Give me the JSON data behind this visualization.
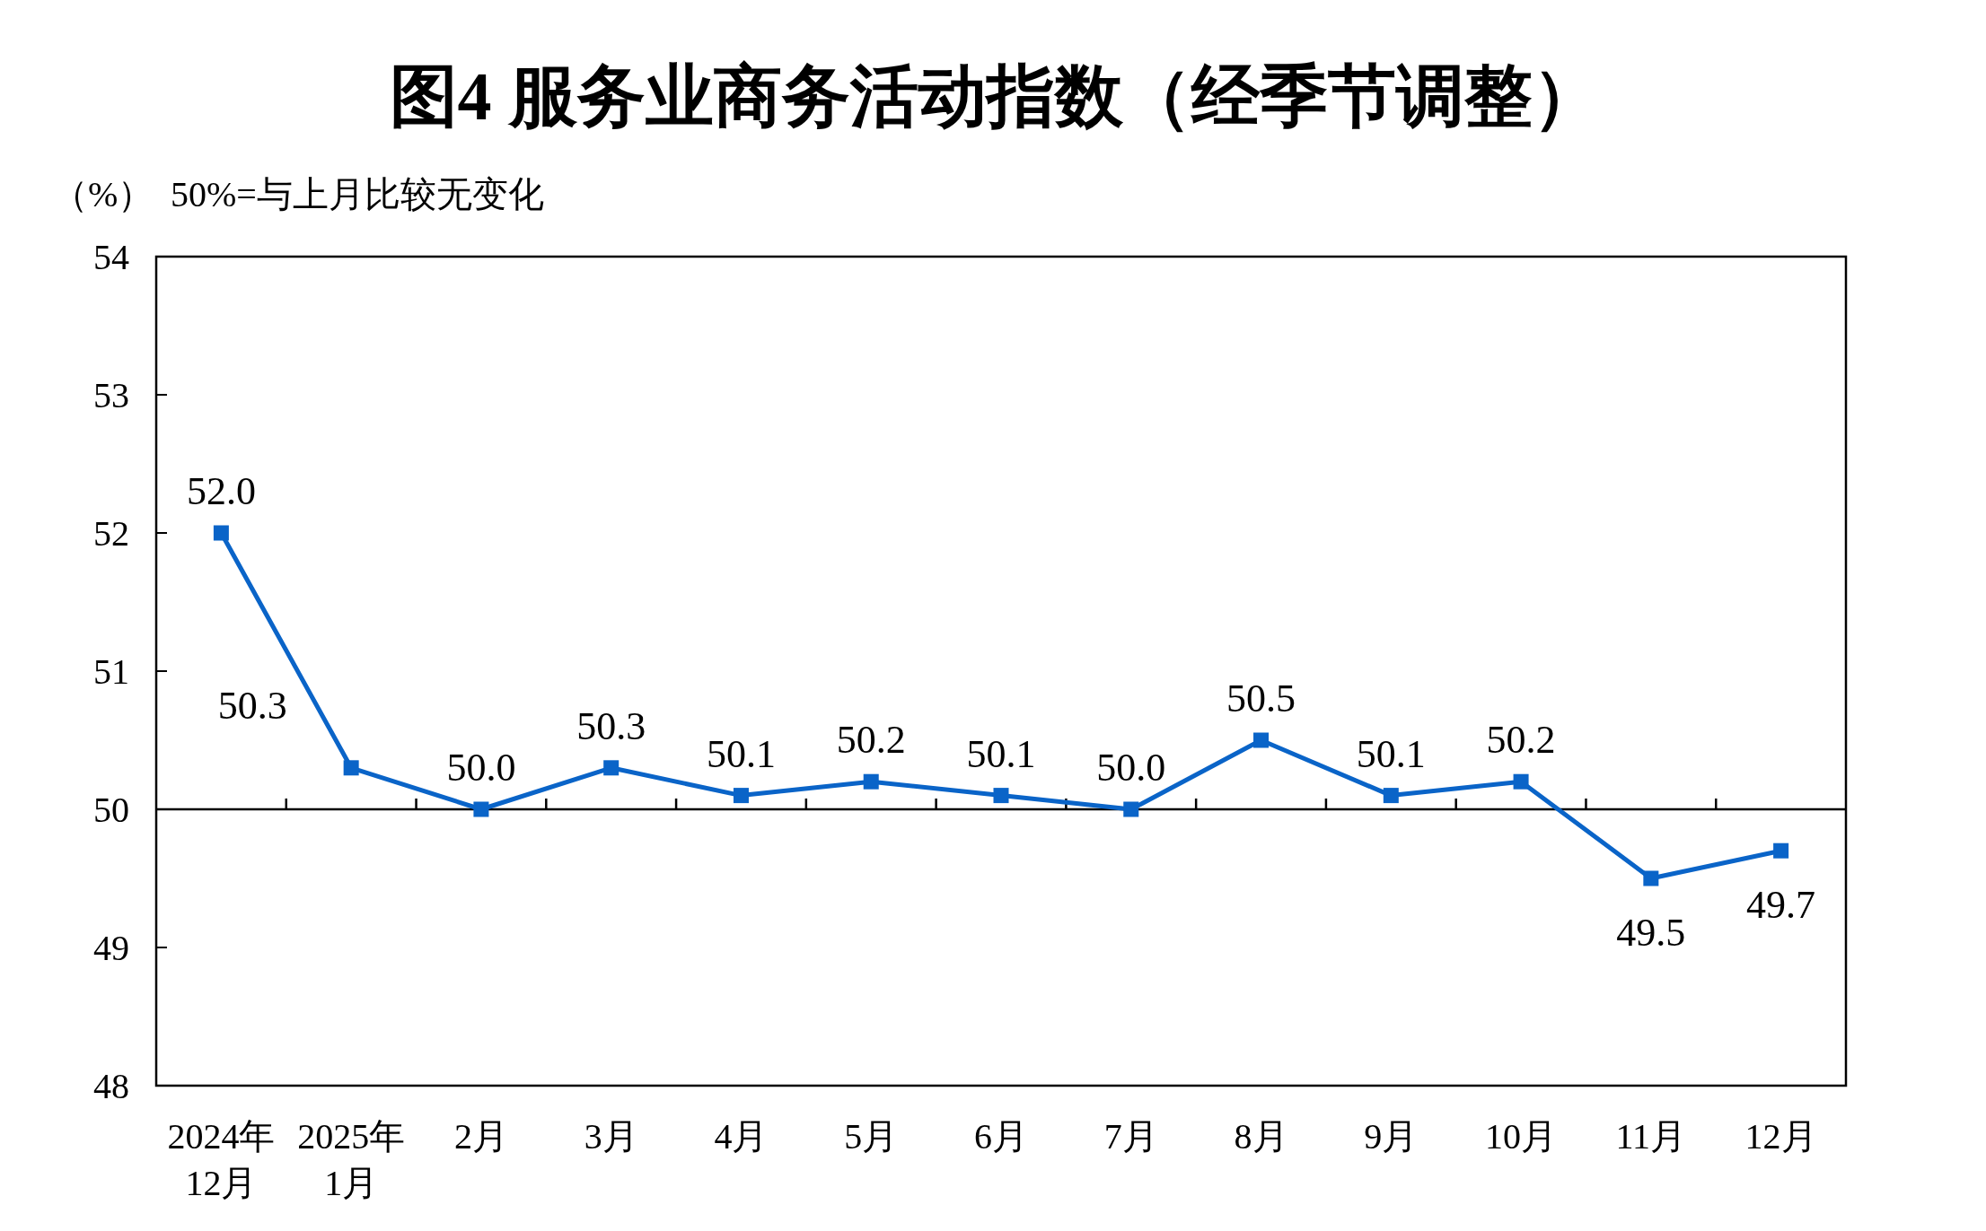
{
  "chart_data": {
    "type": "line",
    "title": "图4  服务业商务活动指数（经季节调整）",
    "ylabel": "（%）",
    "annotations": [
      "50%=与上月比较无变化"
    ],
    "categories": [
      "2024年\n12月",
      "2025年\n1月",
      "2月",
      "3月",
      "4月",
      "5月",
      "6月",
      "7月",
      "8月",
      "9月",
      "10月",
      "11月",
      "12月"
    ],
    "series": [
      {
        "color": "#0a64c8",
        "values": [
          52.0,
          50.3,
          50.0,
          50.3,
          50.1,
          50.2,
          50.1,
          50.0,
          50.5,
          50.1,
          50.2,
          49.5,
          49.7
        ]
      }
    ],
    "ylim": [
      48,
      54
    ],
    "yticks": [
      48,
      49,
      50,
      51,
      52,
      53,
      54
    ],
    "ref_lines": [
      {
        "axis": "y",
        "value": 50,
        "color": "#000000"
      }
    ],
    "value_labels": [
      "52.0",
      "50.3",
      "50.0",
      "50.3",
      "50.1",
      "50.2",
      "50.1",
      "50.0",
      "50.5",
      "50.1",
      "50.2",
      "49.5",
      "49.7"
    ],
    "marker": "square",
    "line_style": "solid"
  }
}
